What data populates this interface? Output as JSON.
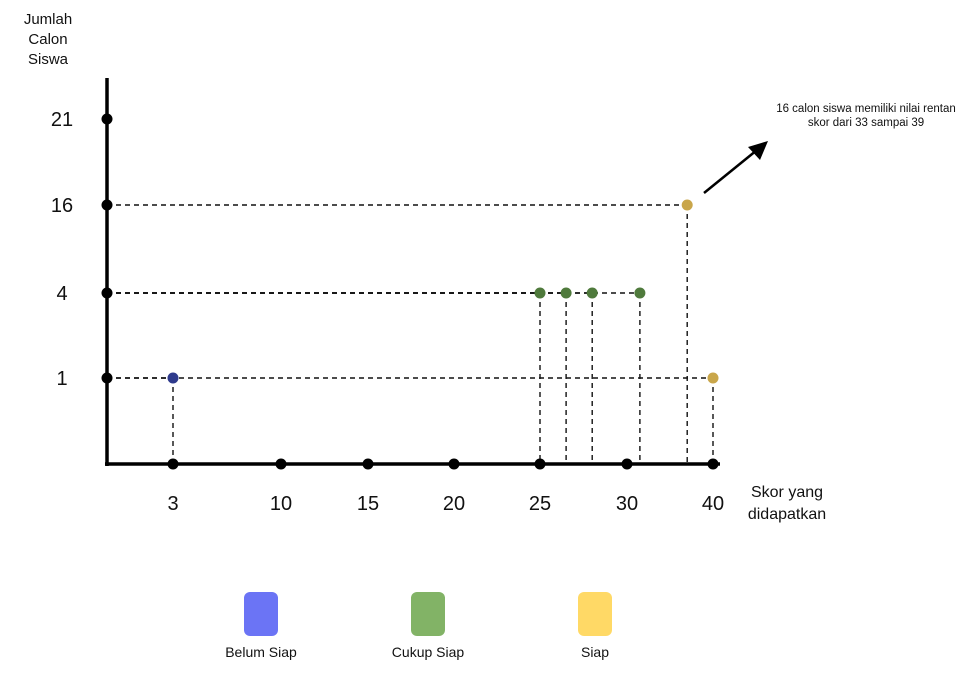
{
  "chart_data": {
    "type": "scatter",
    "title": "",
    "ylabel": "Jumlah Calon Siswa",
    "xlabel": "Skor yang didapatkan",
    "x_ticks": [
      "3",
      "10",
      "15",
      "20",
      "25",
      "30",
      "40"
    ],
    "y_ticks": [
      "1",
      "4",
      "16",
      "21"
    ],
    "grid": false,
    "annotation": "16 calon siswa memiliki nilai rentan skor dari 33 sampai 39",
    "legend": [
      {
        "label": "Belum Siap",
        "color": "#6b74f5"
      },
      {
        "label": "Cukup Siap",
        "color": "#82b366"
      },
      {
        "label": "Siap",
        "color": "#ffd966"
      }
    ],
    "series": [
      {
        "name": "Belum Siap",
        "color": "#2e3a8c",
        "points": [
          {
            "x": 3,
            "y": 1
          }
        ]
      },
      {
        "name": "Cukup Siap",
        "color": "#4f7a3c",
        "points": [
          {
            "x": 25,
            "y": 4
          },
          {
            "x": 26.5,
            "y": 4
          },
          {
            "x": 28,
            "y": 4
          },
          {
            "x": 31.5,
            "y": 4
          }
        ]
      },
      {
        "name": "Siap",
        "color": "#c9a64a",
        "points": [
          {
            "x": 37,
            "y": 16
          },
          {
            "x": 40,
            "y": 1
          }
        ]
      }
    ]
  }
}
